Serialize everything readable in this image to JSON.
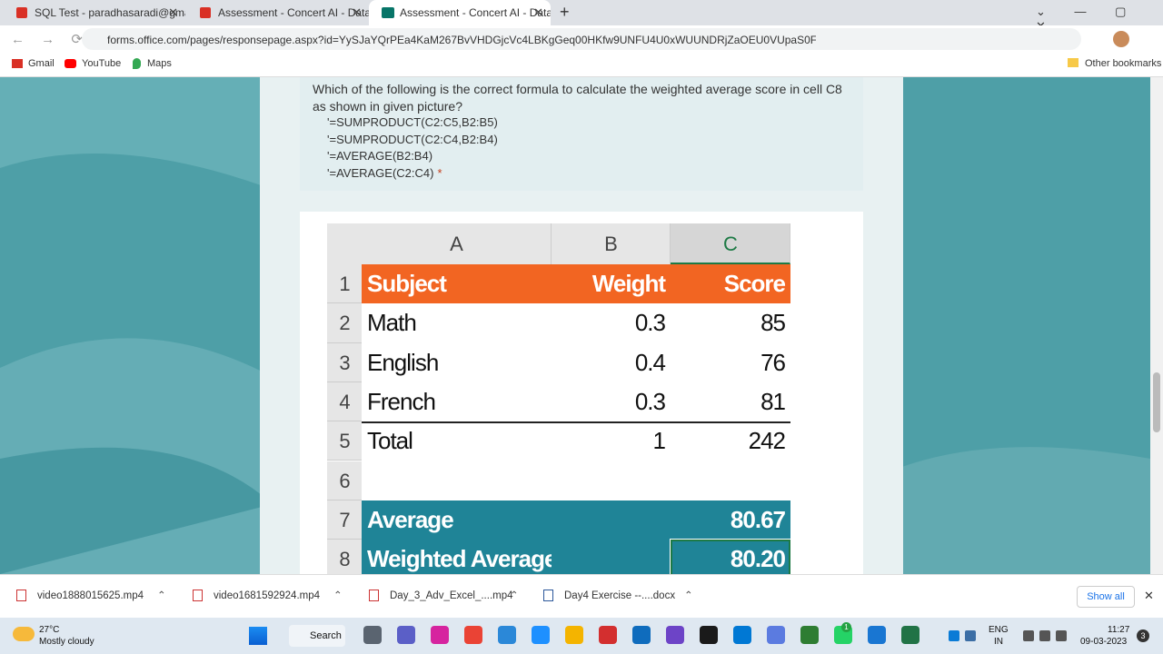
{
  "tabs": [
    {
      "title": "SQL Test - paradhasaradi@gmail"
    },
    {
      "title": "Assessment - Concert AI - Data A"
    },
    {
      "title": "Assessment - Concert AI - Data A"
    }
  ],
  "url": "forms.office.com/pages/responsepage.aspx?id=YySJaYQrPEa4KaM267BvVHDGjcVc4LBKgGeq00HKfw9UNFU4U0xWUUNDRjZaOEU0VUpaS0FRTjFLVS4u",
  "bookmarks": [
    "Gmail",
    "YouTube",
    "Maps"
  ],
  "other_bookmarks": "Other bookmarks",
  "question": {
    "text": "Which  of the following is the correct formula to calculate the weighted average  score in cell C8 as shown in given picture?",
    "options": [
      "'=SUMPRODUCT(C2:C5,B2:B5)",
      "'=SUMPRODUCT(C2:C4,B2:B4)",
      "'=AVERAGE(B2:B4)",
      "'=AVERAGE(C2:C4)"
    ],
    "required": "*"
  },
  "spreadsheet": {
    "columns": [
      "A",
      "B",
      "C"
    ],
    "rows": [
      {
        "num": "1",
        "cells": [
          "Subject",
          "Weight",
          "Score"
        ]
      },
      {
        "num": "2",
        "cells": [
          "Math",
          "0.3",
          "85"
        ]
      },
      {
        "num": "3",
        "cells": [
          "English",
          "0.4",
          "76"
        ]
      },
      {
        "num": "4",
        "cells": [
          "French",
          "0.3",
          "81"
        ]
      },
      {
        "num": "5",
        "cells": [
          "Total",
          "1",
          "242"
        ]
      },
      {
        "num": "6",
        "cells": [
          null,
          null,
          null
        ]
      },
      {
        "num": "7",
        "cells": [
          "Average",
          null,
          "80.67"
        ]
      },
      {
        "num": "8",
        "cells": [
          "Weighted Average",
          null,
          "80.20"
        ]
      }
    ]
  },
  "downloads": {
    "items": [
      "video1888015625.mp4",
      "video1681592924.mp4",
      "Day_3_Adv_Excel_....mp4",
      "Day4 Exercise --....docx"
    ],
    "show_all": "Show all"
  },
  "taskbar": {
    "temperature": "27°C",
    "weather": "Mostly cloudy",
    "search": "Search",
    "whatsapp_badge": "1",
    "language": [
      "ENG",
      "IN"
    ],
    "time": "11:27",
    "date": "09-03-2023",
    "notifications": "3"
  }
}
